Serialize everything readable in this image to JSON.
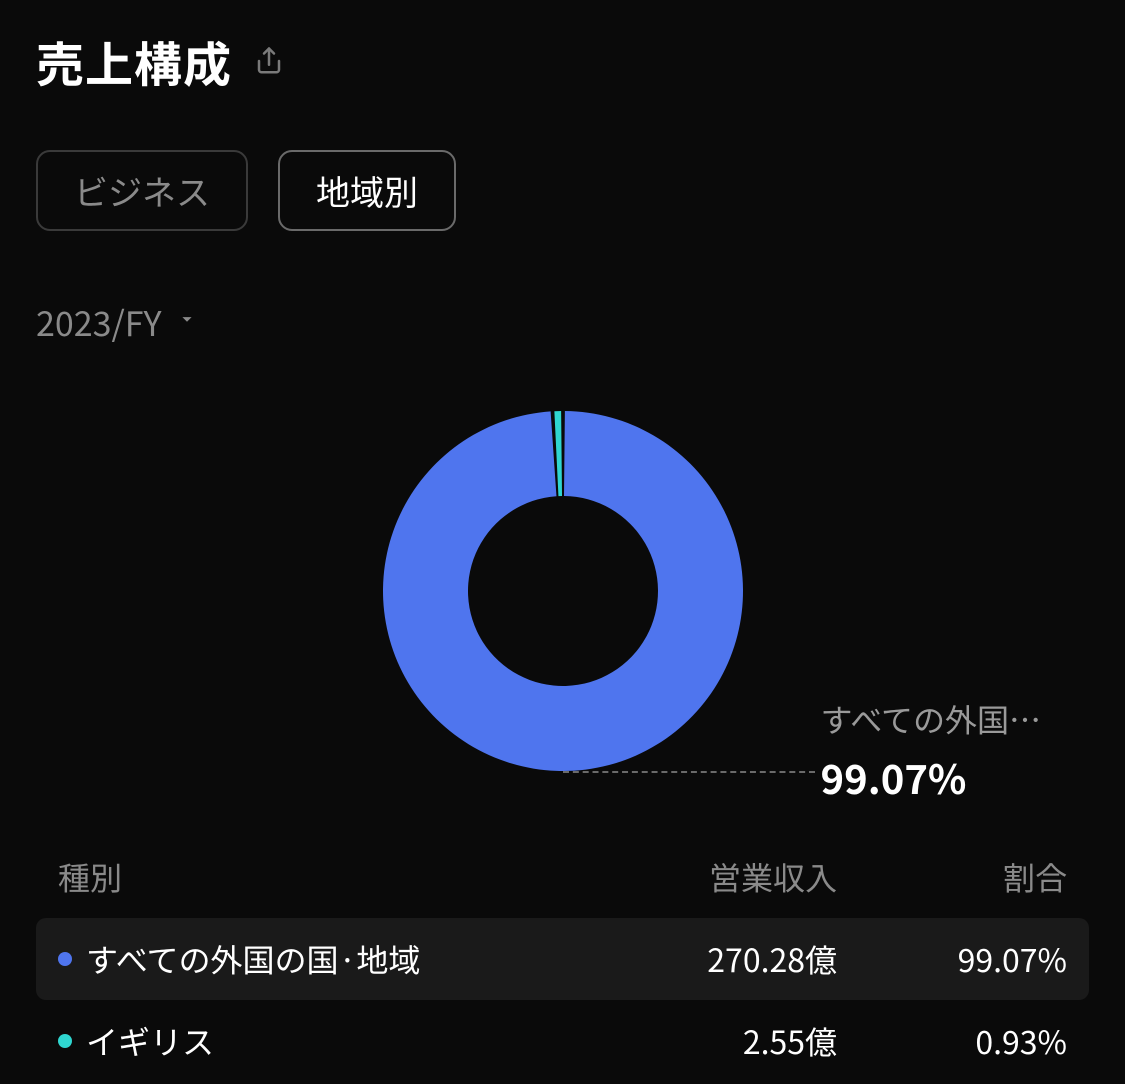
{
  "colors": {
    "background": "#0a0a0a",
    "text_primary": "#ffffff",
    "text_muted": "#8a8a8a",
    "row_highlight": "#1a1a1a",
    "tab_border": "#3a3a3a",
    "tab_border_active": "#6a6a6a",
    "leader_line": "#6a6a6a"
  },
  "header": {
    "title": "売上構成",
    "share_icon": "share-icon"
  },
  "tabs": [
    {
      "label": "ビジネス",
      "active": false
    },
    {
      "label": "地域別",
      "active": true
    }
  ],
  "period": {
    "selected": "2023/FY"
  },
  "chart": {
    "type": "donut",
    "outer_radius": 180,
    "inner_radius": 95,
    "gap_deg": 1.2,
    "background_color": "#0a0a0a",
    "slices": [
      {
        "key": "foreign",
        "value": 99.07,
        "color": "#4f75ee"
      },
      {
        "key": "uk",
        "value": 0.93,
        "color": "#2fd6d0"
      }
    ],
    "callout": {
      "label": "すべての外国…",
      "value": "99.07%"
    }
  },
  "table": {
    "columns": [
      "種別",
      "営業収入",
      "割合"
    ],
    "rows": [
      {
        "color": "#4f75ee",
        "name": "すべての外国の国·地域",
        "revenue": "270.28億",
        "ratio": "99.07%",
        "highlight": true
      },
      {
        "color": "#2fd6d0",
        "name": "イギリス",
        "revenue": "2.55億",
        "ratio": "0.93%",
        "highlight": false
      }
    ]
  }
}
